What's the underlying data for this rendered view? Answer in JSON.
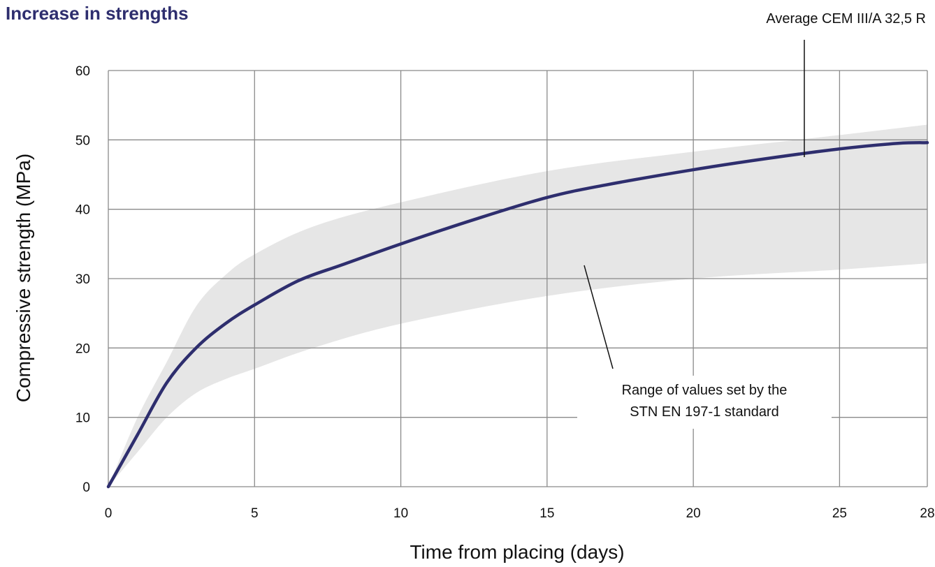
{
  "chart_data": {
    "type": "line",
    "title": "Increase in strengths",
    "xlabel": "Time from placing (days)",
    "ylabel": "Compressive strength (MPa)",
    "xlim": [
      0,
      28
    ],
    "ylim": [
      0,
      60
    ],
    "xticks": [
      0,
      5,
      10,
      15,
      20,
      25,
      28
    ],
    "yticks": [
      0,
      10,
      20,
      30,
      40,
      50,
      60
    ],
    "grid": true,
    "series": [
      {
        "name": "Average CEM III/A 32,5 R",
        "color": "#2e2e6e",
        "x": [
          0,
          1,
          2,
          3,
          4,
          5,
          6.5,
          8,
          10,
          12.5,
          15,
          17,
          20,
          22.5,
          25,
          27,
          28
        ],
        "y": [
          0,
          7.5,
          15,
          20,
          23.5,
          26.2,
          29.7,
          32,
          35,
          38.5,
          41.7,
          43.5,
          45.7,
          47.3,
          48.7,
          49.5,
          49.6
        ]
      }
    ],
    "band": {
      "name": "Range of values set by the STN EN 197-1 standard",
      "color": "#e6e6e6",
      "x": [
        0,
        1,
        2,
        3,
        4,
        5,
        7,
        10,
        15,
        20,
        25,
        28
      ],
      "upper": [
        0,
        10,
        18,
        26,
        30.5,
        33.5,
        37.5,
        41,
        45.5,
        48.3,
        50.7,
        52.2
      ],
      "lower": [
        0,
        5,
        10,
        13.5,
        15.5,
        17,
        20,
        23.5,
        27.5,
        30,
        31.3,
        32.2
      ]
    },
    "annotations": [
      {
        "text": "Average CEM III/A 32,5 R",
        "x": 23.8,
        "y": 48
      },
      {
        "lines": [
          "Range of values set by the",
          "STN EN 197-1 standard"
        ],
        "x": 16.2,
        "y": 32.5
      }
    ]
  }
}
